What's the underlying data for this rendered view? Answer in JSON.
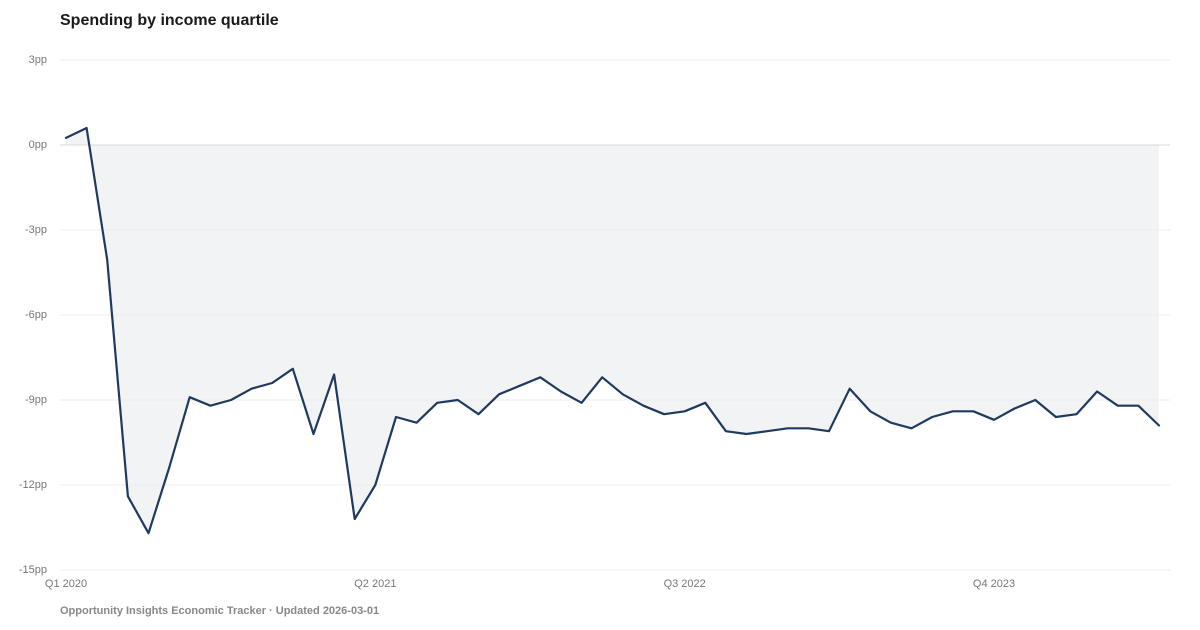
{
  "chart_data": {
    "type": "line",
    "title": "Spending by income quartile",
    "footer": "Opportunity Insights Economic Tracker · Updated 2026-03-01",
    "categories": [
      "Q1 2020",
      null,
      null,
      null,
      null,
      null,
      null,
      null,
      null,
      null,
      null,
      null,
      null,
      null,
      null,
      "Q2 2021",
      null,
      null,
      null,
      null,
      null,
      null,
      null,
      null,
      null,
      null,
      null,
      null,
      null,
      null,
      "Q3 2022",
      null,
      null,
      null,
      null,
      null,
      null,
      null,
      null,
      null,
      null,
      null,
      null,
      null,
      null,
      "Q4 2023",
      null,
      null,
      null,
      null,
      null,
      null,
      null,
      null
    ],
    "series": [
      {
        "color": "#1f3a5f",
        "values": [
          0.25,
          0.6,
          -4.05,
          -12.4,
          -13.7,
          -11.4,
          -8.9,
          -9.2,
          -9.0,
          -8.6,
          -8.4,
          -7.9,
          -10.2,
          -8.1,
          -13.2,
          -12.0,
          -9.6,
          -9.8,
          -9.1,
          -9.0,
          -9.5,
          -8.8,
          -8.5,
          -8.2,
          -8.7,
          -9.1,
          -8.2,
          -8.8,
          -9.2,
          -9.5,
          -9.4,
          -9.1,
          -10.1,
          -10.2,
          -10.1,
          -10.0,
          -10.0,
          -10.1,
          -8.6,
          -9.4,
          -9.8,
          -10.0,
          -9.6,
          -9.4,
          -9.4,
          -9.7,
          -9.3,
          -9.0,
          -9.6,
          -9.5,
          -8.7,
          -9.2,
          -9.2,
          -9.9
        ]
      }
    ],
    "area_color": "#f2f3f5",
    "ylim": [
      -15,
      3
    ],
    "yticks": [
      {
        "value": 3,
        "label": "3pp"
      },
      {
        "value": 0,
        "label": "0pp"
      },
      {
        "value": -3,
        "label": "-3pp"
      },
      {
        "value": -6,
        "label": "-6pp"
      },
      {
        "value": -9,
        "label": "-9pp"
      },
      {
        "value": -12,
        "label": "-12pp"
      },
      {
        "value": -15,
        "label": "-15pp"
      }
    ],
    "grid": true
  }
}
